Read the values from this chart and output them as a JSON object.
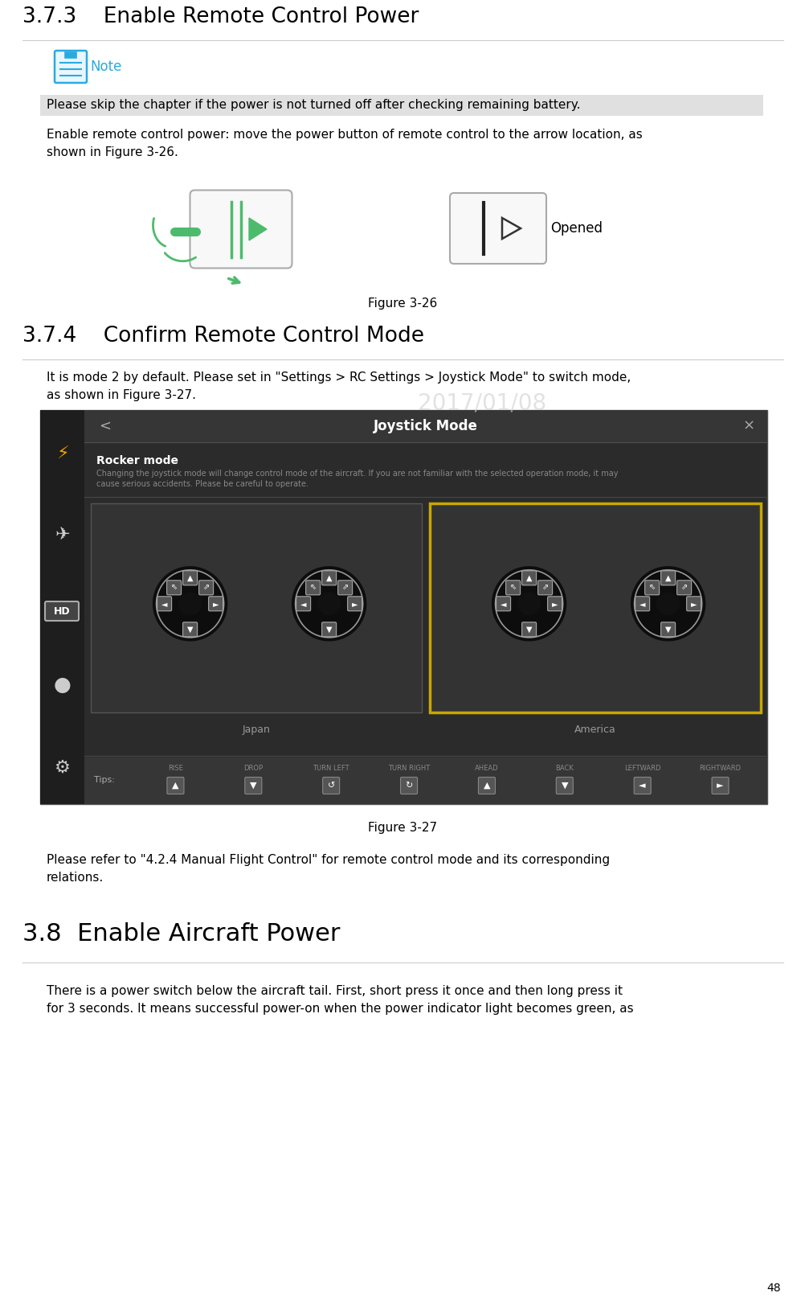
{
  "bg_color": "#ffffff",
  "page_number": "48",
  "section_373_title": "3.7.3    Enable Remote Control Power",
  "note_color": "#29abe2",
  "note_text": "Note",
  "note_highlight": "Please skip the chapter if the power is not turned off after checking remaining battery.",
  "note_highlight_bg": "#e0e0e0",
  "para1_a": "Enable remote control power: move the power button of remote control to the arrow location, as",
  "para1_b": "shown in Figure 3-26.",
  "fig326_caption": "Figure 3-26",
  "section_374_title": "3.7.4    Confirm Remote Control Mode",
  "para2_a": "It is mode 2 by default. Please set in \"Settings > RC Settings > Joystick Mode\" to switch mode,",
  "para2_b": "as shown in Figure 3-27.",
  "fig327_caption": "Figure 3-27",
  "para3_a": "Please refer to \"4.2.4 Manual Flight Control\" for remote control mode and its corresponding",
  "para3_b": "relations.",
  "section_38_title": "3.8  Enable Aircraft Power",
  "para4_a": "There is a power switch below the aircraft tail. First, short press it once and then long press it",
  "para4_b": "for 3 seconds. It means successful power-on when the power indicator light becomes green, as",
  "watermark_text": "2017/01/08",
  "joystick_bg": "#2b2b2b",
  "joystick_sidebar_bg": "#1e1e1e",
  "joystick_header_bg": "#363636",
  "joystick_title": "Joystick Mode",
  "joystick_sub_title": "Rocker mode",
  "joystick_desc": "Changing the joystick mode will change control mode of the aircraft. If you are not familiar with the selected operation mode, it may\ncause serious accidents. Please be careful to operate.",
  "joystick_selected_color": "#c8a800",
  "japan_label": "Japan",
  "america_label": "America",
  "tip_items": [
    "RISE",
    "DROP",
    "TURN LEFT",
    "TURN RIGHT",
    "AHEAD",
    "BACK",
    "LEFTWARD",
    "RIGHTWARD"
  ],
  "sidebar_icon_color": "#f0a000",
  "green_color": "#4dbb6d",
  "switch_gray": "#aaaaaa",
  "font_size_body": 11,
  "font_size_title373": 19,
  "font_size_title374": 19,
  "font_size_title38": 22
}
